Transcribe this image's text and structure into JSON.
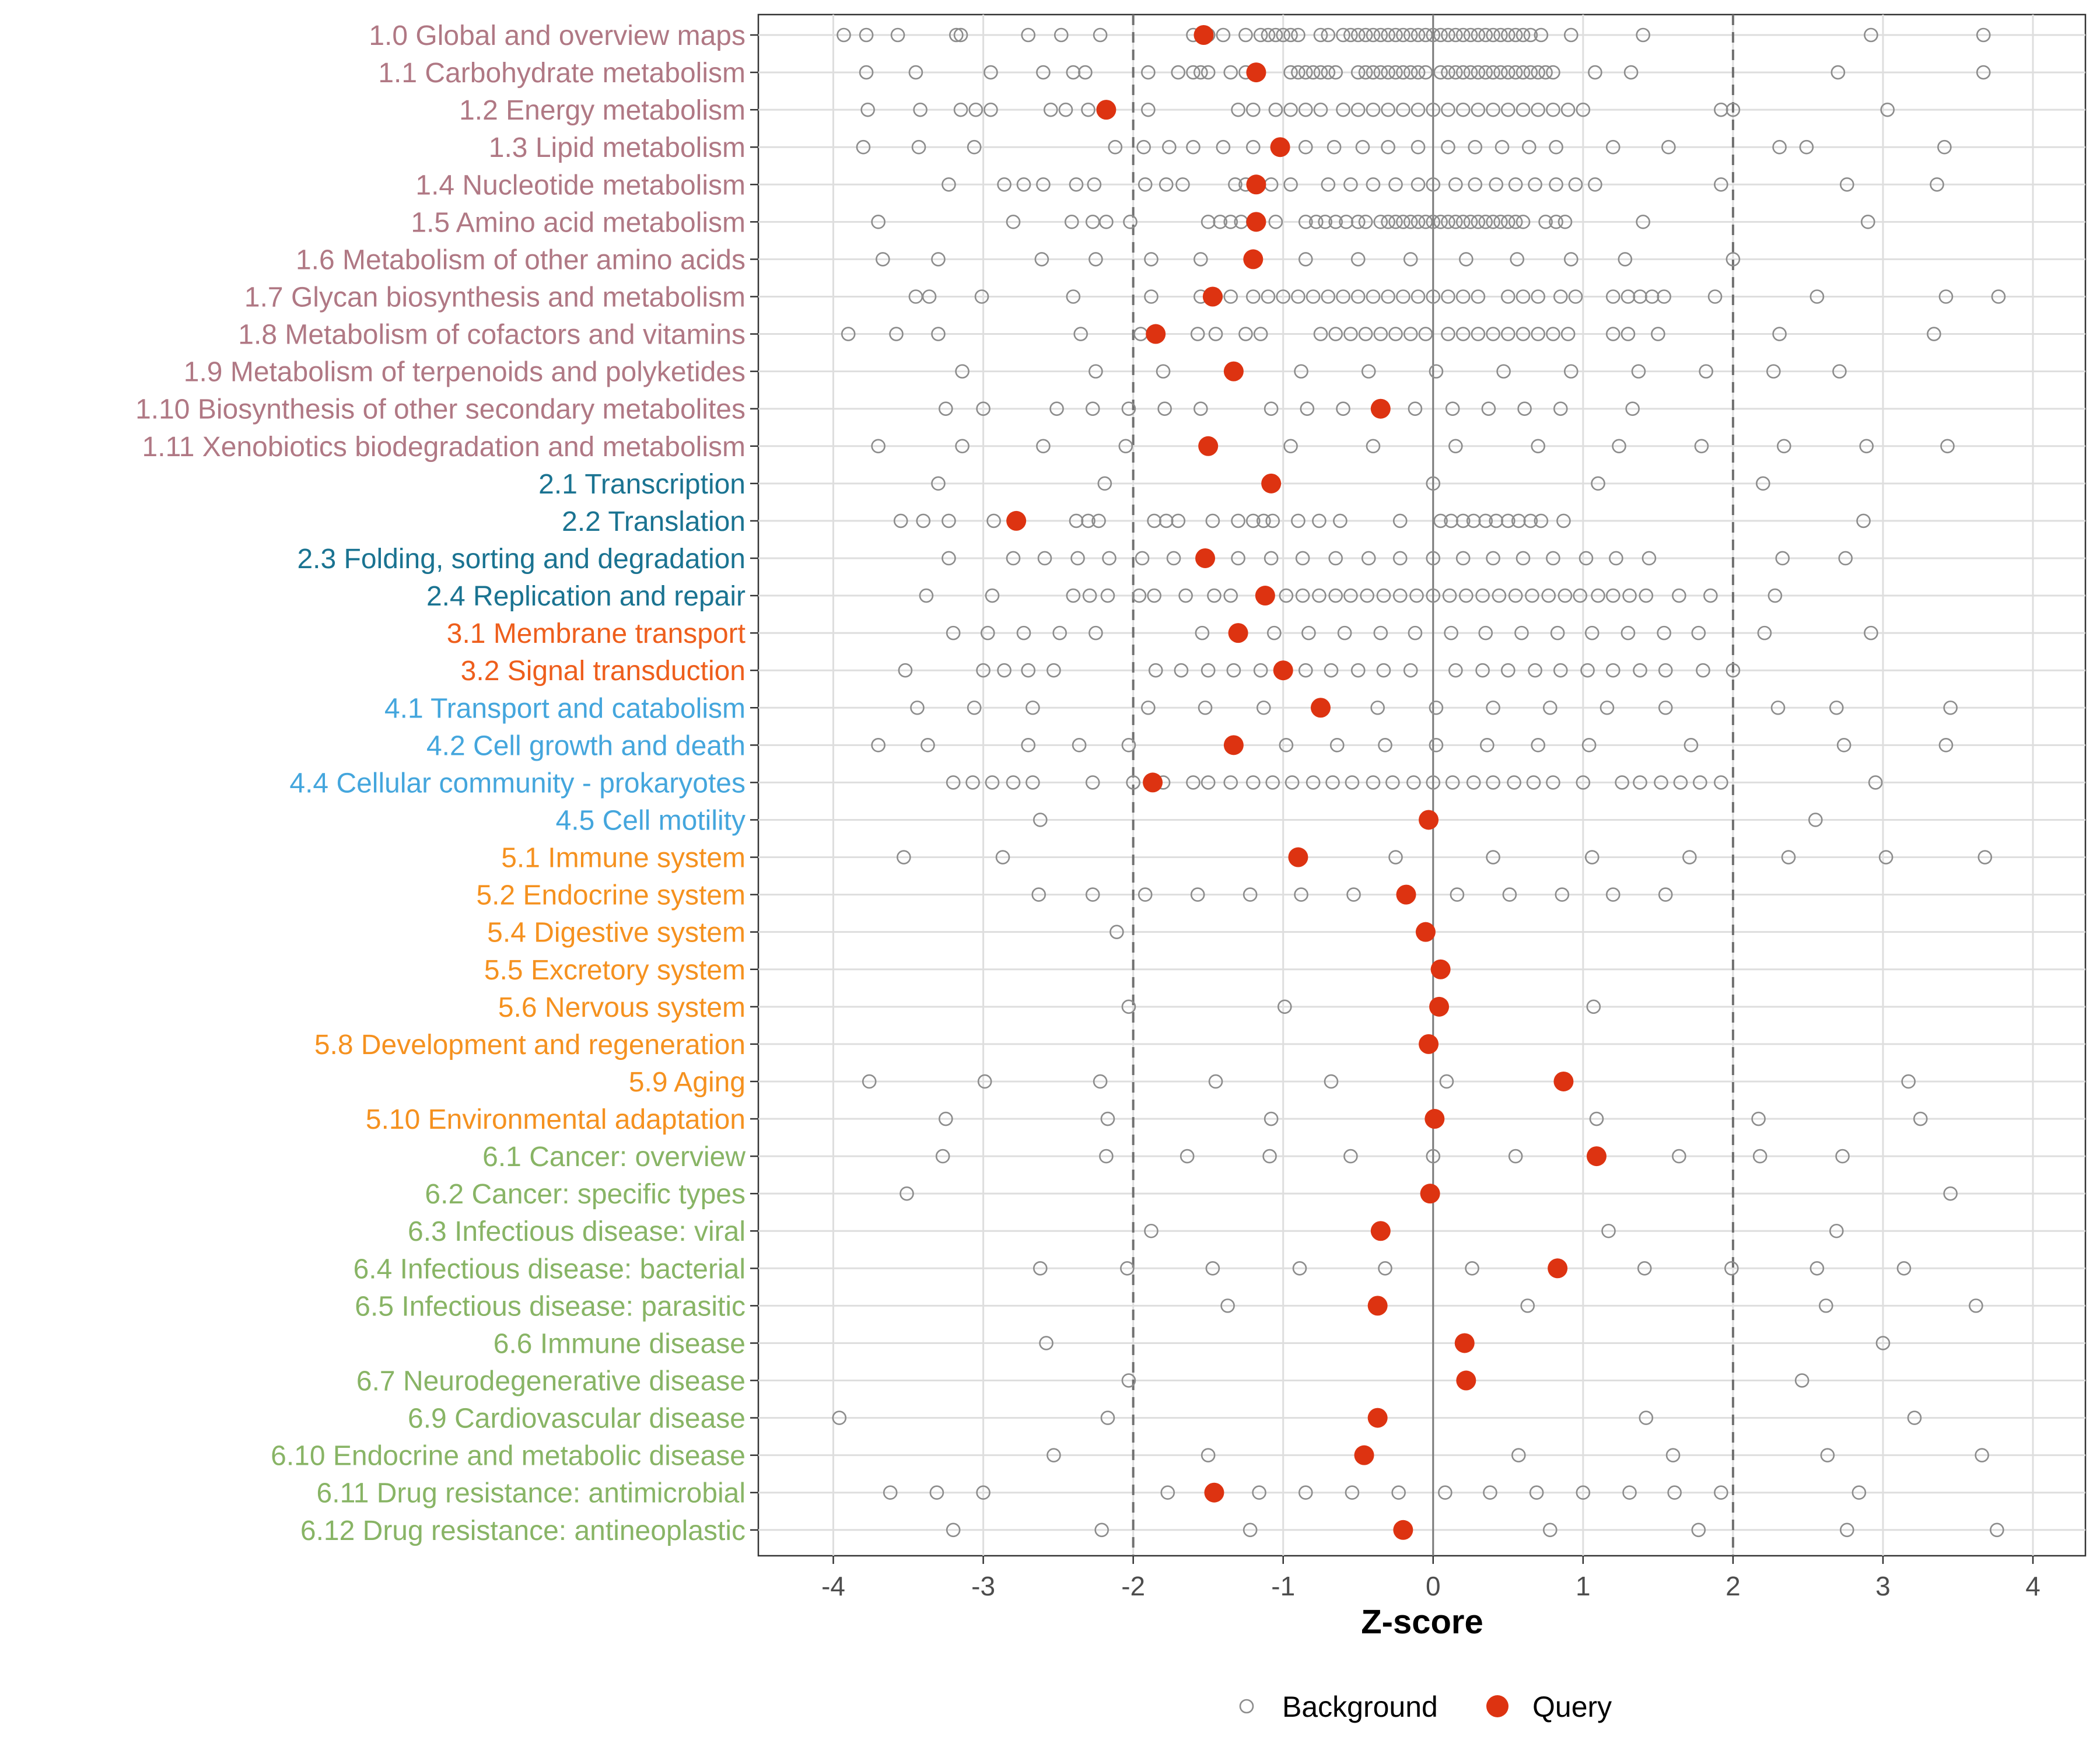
{
  "chart_data": {
    "type": "scatter",
    "xlabel": "Z-score",
    "xlim": [
      -4.5,
      4.35
    ],
    "xticks": [
      -4,
      -3,
      -2,
      -1,
      0,
      1,
      2,
      3,
      4
    ],
    "reference_lines": [
      -2,
      2
    ],
    "zero_line": 0,
    "grid": true,
    "legend_position": "bottom",
    "legend": [
      {
        "name": "Background",
        "marker": "open-circle",
        "color": "#8c8c8c"
      },
      {
        "name": "Query",
        "marker": "filled-circle",
        "color": "#dd3311"
      }
    ],
    "group_colors": {
      "1": "#b07884",
      "2": "#1a7391",
      "3": "#ee5e1c",
      "4": "#44a6dd",
      "5": "#f5911f",
      "6": "#88b465"
    },
    "categories": [
      {
        "label": "1.0 Global and overview maps",
        "group": "1",
        "query": -1.53,
        "background": [
          -3.93,
          -3.78,
          -3.57,
          -3.18,
          -3.15,
          -2.7,
          -2.48,
          -2.22,
          -1.6,
          -1.5,
          -1.4,
          -1.25,
          -1.15,
          -1.1,
          -1.05,
          -1.0,
          -0.95,
          -0.9,
          -0.75,
          -0.7,
          -0.6,
          -0.55,
          -0.5,
          -0.45,
          -0.4,
          -0.35,
          -0.3,
          -0.25,
          -0.2,
          -0.15,
          -0.1,
          -0.05,
          0.0,
          0.05,
          0.1,
          0.15,
          0.2,
          0.25,
          0.3,
          0.35,
          0.4,
          0.45,
          0.5,
          0.55,
          0.6,
          0.65,
          0.72,
          0.92,
          1.4,
          2.92,
          3.67
        ]
      },
      {
        "label": "1.1 Carbohydrate metabolism",
        "group": "1",
        "query": -1.18,
        "background": [
          -3.78,
          -3.45,
          -2.95,
          -2.6,
          -2.4,
          -2.32,
          -1.9,
          -1.7,
          -1.6,
          -1.55,
          -1.5,
          -1.35,
          -1.25,
          -0.95,
          -0.9,
          -0.85,
          -0.8,
          -0.75,
          -0.7,
          -0.65,
          -0.5,
          -0.45,
          -0.4,
          -0.35,
          -0.3,
          -0.25,
          -0.2,
          -0.15,
          -0.1,
          -0.05,
          0.05,
          0.1,
          0.15,
          0.2,
          0.25,
          0.3,
          0.35,
          0.4,
          0.45,
          0.5,
          0.55,
          0.6,
          0.65,
          0.7,
          0.75,
          0.8,
          1.08,
          1.32,
          2.7,
          3.67
        ]
      },
      {
        "label": "1.2 Energy metabolism",
        "group": "1",
        "query": -2.18,
        "background": [
          -3.77,
          -3.42,
          -3.15,
          -3.05,
          -2.95,
          -2.55,
          -2.45,
          -2.3,
          -1.9,
          -1.3,
          -1.2,
          -1.05,
          -0.95,
          -0.85,
          -0.75,
          -0.6,
          -0.5,
          -0.4,
          -0.3,
          -0.2,
          -0.1,
          0.0,
          0.1,
          0.2,
          0.3,
          0.4,
          0.5,
          0.6,
          0.7,
          0.8,
          0.9,
          1.0,
          1.92,
          2.0,
          3.03
        ]
      },
      {
        "label": "1.3 Lipid metabolism",
        "group": "1",
        "query": -1.02,
        "background": [
          -3.8,
          -3.43,
          -3.06,
          -2.12,
          -1.93,
          -1.76,
          -1.6,
          -1.4,
          -1.2,
          -0.85,
          -0.66,
          -0.47,
          -0.3,
          -0.1,
          0.1,
          0.28,
          0.46,
          0.64,
          0.82,
          1.2,
          1.57,
          2.31,
          2.49,
          3.41
        ]
      },
      {
        "label": "1.4 Nucleotide metabolism",
        "group": "1",
        "query": -1.18,
        "background": [
          -3.23,
          -2.86,
          -2.73,
          -2.6,
          -2.38,
          -2.26,
          -1.92,
          -1.78,
          -1.67,
          -1.32,
          -1.25,
          -1.08,
          -0.95,
          -0.7,
          -0.55,
          -0.4,
          -0.25,
          -0.1,
          0.0,
          0.15,
          0.28,
          0.42,
          0.55,
          0.68,
          0.82,
          0.95,
          1.08,
          1.92,
          2.76,
          3.36
        ]
      },
      {
        "label": "1.5 Amino acid metabolism",
        "group": "1",
        "query": -1.18,
        "background": [
          -3.7,
          -2.8,
          -2.41,
          -2.27,
          -2.18,
          -2.02,
          -1.5,
          -1.42,
          -1.35,
          -1.28,
          -1.2,
          -1.05,
          -0.85,
          -0.78,
          -0.72,
          -0.65,
          -0.58,
          -0.5,
          -0.45,
          -0.35,
          -0.3,
          -0.25,
          -0.2,
          -0.15,
          -0.1,
          -0.05,
          0.0,
          0.05,
          0.1,
          0.15,
          0.2,
          0.25,
          0.3,
          0.35,
          0.4,
          0.45,
          0.5,
          0.55,
          0.6,
          0.75,
          0.82,
          0.88,
          1.4,
          2.9
        ]
      },
      {
        "label": "1.6 Metabolism of other amino acids",
        "group": "1",
        "query": -1.2,
        "background": [
          -3.67,
          -3.3,
          -2.61,
          -2.25,
          -1.88,
          -1.55,
          -0.85,
          -0.5,
          -0.15,
          0.22,
          0.56,
          0.92,
          1.28,
          2.0
        ]
      },
      {
        "label": "1.7 Glycan biosynthesis and metabolism",
        "group": "1",
        "query": -1.47,
        "background": [
          -3.45,
          -3.36,
          -3.01,
          -2.4,
          -1.88,
          -1.55,
          -1.45,
          -1.35,
          -1.2,
          -1.1,
          -1.0,
          -0.9,
          -0.8,
          -0.7,
          -0.6,
          -0.5,
          -0.4,
          -0.3,
          -0.2,
          -0.1,
          0.0,
          0.1,
          0.2,
          0.3,
          0.5,
          0.6,
          0.7,
          0.85,
          0.95,
          1.2,
          1.3,
          1.38,
          1.46,
          1.54,
          1.88,
          2.56,
          3.42,
          3.77
        ]
      },
      {
        "label": "1.8 Metabolism of cofactors and vitamins",
        "group": "1",
        "query": -1.85,
        "background": [
          -3.9,
          -3.58,
          -3.3,
          -2.35,
          -1.95,
          -1.57,
          -1.45,
          -1.25,
          -1.15,
          -0.75,
          -0.65,
          -0.55,
          -0.45,
          -0.35,
          -0.25,
          -0.15,
          -0.05,
          0.1,
          0.2,
          0.3,
          0.4,
          0.5,
          0.6,
          0.7,
          0.8,
          0.9,
          1.2,
          1.3,
          1.5,
          2.31,
          3.34
        ]
      },
      {
        "label": "1.9 Metabolism of terpenoids and polyketides",
        "group": "1",
        "query": -1.33,
        "background": [
          -3.14,
          -2.25,
          -1.8,
          -0.88,
          -0.43,
          0.02,
          0.47,
          0.92,
          1.37,
          1.82,
          2.27,
          2.71
        ]
      },
      {
        "label": "1.10 Biosynthesis of other secondary metabolites",
        "group": "1",
        "query": -0.35,
        "background": [
          -3.25,
          -3.0,
          -2.51,
          -2.27,
          -2.03,
          -1.79,
          -1.55,
          -1.08,
          -0.84,
          -0.6,
          -0.12,
          0.13,
          0.37,
          0.61,
          0.85,
          1.33
        ]
      },
      {
        "label": "1.11 Xenobiotics biodegradation and metabolism",
        "group": "1",
        "query": -1.5,
        "background": [
          -3.7,
          -3.14,
          -2.6,
          -2.05,
          -0.95,
          -0.4,
          0.15,
          0.7,
          1.24,
          1.79,
          2.34,
          2.89,
          3.43
        ]
      },
      {
        "label": "2.1 Transcription",
        "group": "2",
        "query": -1.08,
        "background": [
          -3.3,
          -2.19,
          0.0,
          1.1,
          2.2
        ]
      },
      {
        "label": "2.2 Translation",
        "group": "2",
        "query": -2.78,
        "background": [
          -3.55,
          -3.4,
          -3.23,
          -2.93,
          -2.38,
          -2.3,
          -2.23,
          -1.86,
          -1.78,
          -1.7,
          -1.47,
          -1.3,
          -1.2,
          -1.13,
          -1.07,
          -0.9,
          -0.76,
          -0.62,
          -0.22,
          0.05,
          0.12,
          0.2,
          0.27,
          0.35,
          0.42,
          0.5,
          0.57,
          0.65,
          0.72,
          0.87,
          2.87
        ]
      },
      {
        "label": "2.3 Folding, sorting and degradation",
        "group": "2",
        "query": -1.52,
        "background": [
          -3.23,
          -2.8,
          -2.59,
          -2.37,
          -2.16,
          -1.94,
          -1.73,
          -1.3,
          -1.08,
          -0.87,
          -0.65,
          -0.43,
          -0.22,
          0.0,
          0.2,
          0.4,
          0.6,
          0.8,
          1.02,
          1.22,
          1.44,
          2.33,
          2.75
        ]
      },
      {
        "label": "2.4 Replication and repair",
        "group": "2",
        "query": -1.12,
        "background": [
          -3.38,
          -2.94,
          -2.4,
          -2.29,
          -2.17,
          -1.96,
          -1.86,
          -1.65,
          -1.46,
          -1.35,
          -0.98,
          -0.87,
          -0.76,
          -0.65,
          -0.55,
          -0.44,
          -0.33,
          -0.22,
          -0.11,
          0.0,
          0.11,
          0.22,
          0.33,
          0.44,
          0.55,
          0.66,
          0.77,
          0.88,
          0.98,
          1.1,
          1.2,
          1.31,
          1.42,
          1.64,
          1.85,
          2.28
        ]
      },
      {
        "label": "3.1 Membrane transport",
        "group": "3",
        "query": -1.3,
        "background": [
          -3.2,
          -2.97,
          -2.73,
          -2.49,
          -2.25,
          -1.54,
          -1.06,
          -0.83,
          -0.59,
          -0.35,
          -0.12,
          0.12,
          0.35,
          0.59,
          0.83,
          1.06,
          1.3,
          1.54,
          1.77,
          2.21,
          2.92
        ]
      },
      {
        "label": "3.2 Signal transduction",
        "group": "3",
        "query": -1.0,
        "background": [
          -3.52,
          -3.0,
          -2.86,
          -2.7,
          -2.53,
          -1.85,
          -1.68,
          -1.5,
          -1.33,
          -1.15,
          -0.85,
          -0.68,
          -0.5,
          -0.33,
          -0.15,
          0.15,
          0.33,
          0.5,
          0.68,
          0.85,
          1.03,
          1.2,
          1.38,
          1.55,
          1.8,
          2.0
        ]
      },
      {
        "label": "4.1 Transport and catabolism",
        "group": "4",
        "query": -0.75,
        "background": [
          -3.44,
          -3.06,
          -2.67,
          -1.9,
          -1.52,
          -1.13,
          -0.37,
          0.02,
          0.4,
          0.78,
          1.16,
          1.55,
          2.3,
          2.69,
          3.45
        ]
      },
      {
        "label": "4.2 Cell growth and death",
        "group": "4",
        "query": -1.33,
        "background": [
          -3.7,
          -3.37,
          -2.7,
          -2.36,
          -2.03,
          -0.98,
          -0.64,
          -0.32,
          0.02,
          0.36,
          0.7,
          1.04,
          1.72,
          2.74,
          3.42
        ]
      },
      {
        "label": "4.4 Cellular community - prokaryotes",
        "group": "4",
        "query": -1.87,
        "background": [
          -3.2,
          -3.07,
          -2.94,
          -2.8,
          -2.67,
          -2.27,
          -2.0,
          -1.8,
          -1.6,
          -1.5,
          -1.35,
          -1.2,
          -1.07,
          -0.94,
          -0.8,
          -0.67,
          -0.54,
          -0.4,
          -0.27,
          -0.13,
          0.0,
          0.13,
          0.27,
          0.4,
          0.54,
          0.67,
          0.8,
          1.0,
          1.26,
          1.38,
          1.52,
          1.65,
          1.78,
          1.92,
          2.95
        ]
      },
      {
        "label": "4.5 Cell motility",
        "group": "4",
        "query": -0.03,
        "background": [
          -2.62,
          2.55
        ]
      },
      {
        "label": "5.1 Immune system",
        "group": "5",
        "query": -0.9,
        "background": [
          -3.53,
          -2.87,
          -0.25,
          0.4,
          1.06,
          1.71,
          2.37,
          3.02,
          3.68
        ]
      },
      {
        "label": "5.2 Endocrine system",
        "group": "5",
        "query": -0.18,
        "background": [
          -2.63,
          -2.27,
          -1.92,
          -1.57,
          -1.22,
          -0.88,
          -0.53,
          0.16,
          0.51,
          0.86,
          1.2,
          1.55
        ]
      },
      {
        "label": "5.4 Digestive system",
        "group": "5",
        "query": -0.05,
        "background": [
          -2.11
        ]
      },
      {
        "label": "5.5 Excretory system",
        "group": "5",
        "query": 0.05,
        "background": []
      },
      {
        "label": "5.6 Nervous system",
        "group": "5",
        "query": 0.04,
        "background": [
          -2.03,
          -0.99,
          1.07
        ]
      },
      {
        "label": "5.8 Development and regeneration",
        "group": "5",
        "query": -0.03,
        "background": []
      },
      {
        "label": "5.9 Aging",
        "group": "5",
        "query": 0.87,
        "background": [
          -3.76,
          -2.99,
          -2.22,
          -1.45,
          -0.68,
          0.09,
          3.17
        ]
      },
      {
        "label": "5.10 Environmental adaptation",
        "group": "5",
        "query": 0.01,
        "background": [
          -3.25,
          -2.17,
          -1.08,
          1.09,
          2.17,
          3.25
        ]
      },
      {
        "label": "6.1 Cancer: overview",
        "group": "6",
        "query": 1.09,
        "background": [
          -3.27,
          -2.18,
          -1.64,
          -1.09,
          -0.55,
          0.0,
          0.55,
          1.64,
          2.18,
          2.73
        ]
      },
      {
        "label": "6.2 Cancer: specific types",
        "group": "6",
        "query": -0.02,
        "background": [
          -3.51,
          3.45
        ]
      },
      {
        "label": "6.3 Infectious disease: viral",
        "group": "6",
        "query": -0.35,
        "background": [
          -1.88,
          1.17,
          2.69
        ]
      },
      {
        "label": "6.4 Infectious disease: bacterial",
        "group": "6",
        "query": 0.83,
        "background": [
          -2.62,
          -2.04,
          -1.47,
          -0.89,
          -0.32,
          0.26,
          1.41,
          1.99,
          2.56,
          3.14
        ]
      },
      {
        "label": "6.5 Infectious disease: parasitic",
        "group": "6",
        "query": -0.37,
        "background": [
          -1.37,
          0.63,
          2.62,
          3.62
        ]
      },
      {
        "label": "6.6 Immune disease",
        "group": "6",
        "query": 0.21,
        "background": [
          -2.58,
          3.0
        ]
      },
      {
        "label": "6.7 Neurodegenerative disease",
        "group": "6",
        "query": 0.22,
        "background": [
          -2.03,
          2.46
        ]
      },
      {
        "label": "6.9 Cardiovascular disease",
        "group": "6",
        "query": -0.37,
        "background": [
          -3.96,
          -2.17,
          1.42,
          3.21
        ]
      },
      {
        "label": "6.10 Endocrine and metabolic disease",
        "group": "6",
        "query": -0.46,
        "background": [
          -2.53,
          -1.5,
          0.57,
          1.6,
          2.63,
          3.66
        ]
      },
      {
        "label": "6.11 Drug resistance: antimicrobial",
        "group": "6",
        "query": -1.46,
        "background": [
          -3.62,
          -3.31,
          -3.0,
          -1.77,
          -1.16,
          -0.85,
          -0.54,
          -0.23,
          0.08,
          0.38,
          0.69,
          1.0,
          1.31,
          1.61,
          1.92,
          2.84
        ]
      },
      {
        "label": "6.12 Drug resistance: antineoplastic",
        "group": "6",
        "query": -0.2,
        "background": [
          -3.2,
          -2.21,
          -1.22,
          0.78,
          1.77,
          2.76,
          3.76
        ]
      }
    ]
  }
}
